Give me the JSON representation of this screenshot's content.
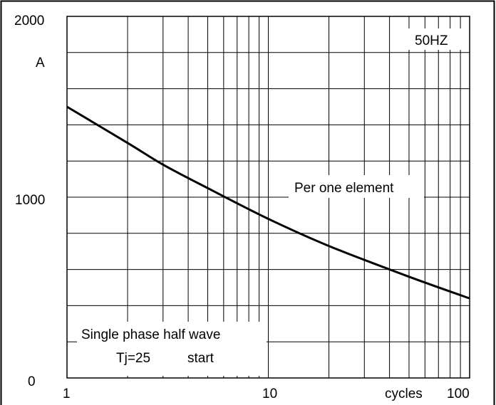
{
  "chart_data": {
    "type": "line",
    "x_scale": "log",
    "xlim": [
      1,
      100
    ],
    "ylim": [
      0,
      2000
    ],
    "grid": true,
    "x_tick_labels": [
      {
        "value": 1,
        "text": "1"
      },
      {
        "value": 10,
        "text": "10"
      },
      {
        "value": 100,
        "text": "100"
      }
    ],
    "y_tick_labels": [
      {
        "value": 0,
        "text": "0"
      },
      {
        "value": 1000,
        "text": "1000"
      },
      {
        "value": 2000,
        "text": "2000"
      }
    ],
    "ylabel": "A",
    "xlabel": "cycles",
    "annotations": {
      "frequency": "50HZ",
      "element": "Per one element",
      "condition_line1": "Single phase half wave",
      "condition_line2_a": "Tj=25",
      "condition_line2_b": "start"
    },
    "series": [
      {
        "x": [
          1,
          2,
          3,
          5,
          10,
          20,
          50,
          100
        ],
        "values": [
          1500,
          1300,
          1180,
          1050,
          880,
          730,
          560,
          440
        ]
      }
    ]
  }
}
